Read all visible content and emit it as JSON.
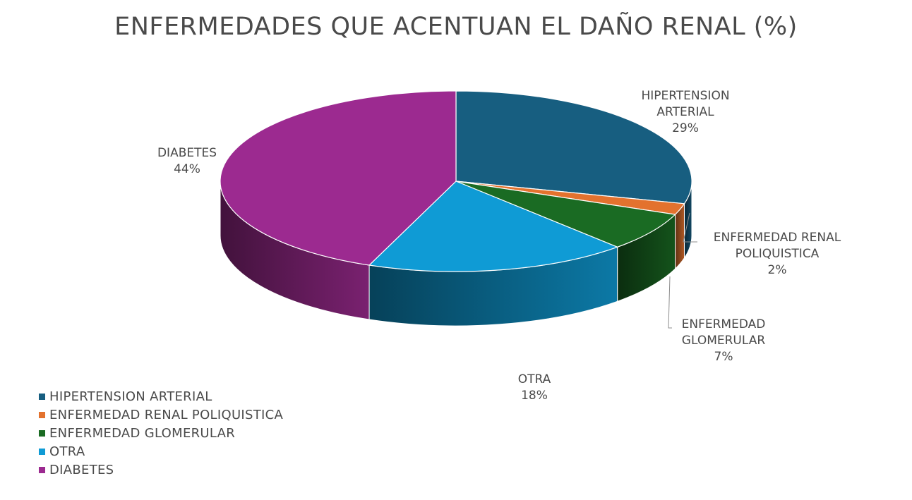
{
  "chart_data": {
    "type": "pie",
    "title": "ENFERMEDADES QUE ACENTUAN EL DAÑO RENAL (%)",
    "categories": [
      "HIPERTENSION ARTERIAL",
      "ENFERMEDAD RENAL POLIQUISTICA",
      "ENFERMEDAD GLOMERULAR",
      "OTRA",
      "DIABETES"
    ],
    "values": [
      29,
      2,
      7,
      18,
      44
    ],
    "label_lines": [
      [
        "HIPERTENSION",
        "ARTERIAL"
      ],
      [
        "ENFERMEDAD RENAL",
        "POLIQUISTICA"
      ],
      [
        "ENFERMEDAD",
        "GLOMERULAR"
      ],
      [
        "OTRA"
      ],
      [
        "DIABETES"
      ]
    ],
    "value_labels": [
      "29%",
      "2%",
      "7%",
      "18%",
      "44%"
    ],
    "colors": [
      "#175e80",
      "#e3722e",
      "#1a6b23",
      "#0f9bd5",
      "#9c2a90"
    ],
    "legend_position": "bottom-left",
    "style": "3d"
  }
}
